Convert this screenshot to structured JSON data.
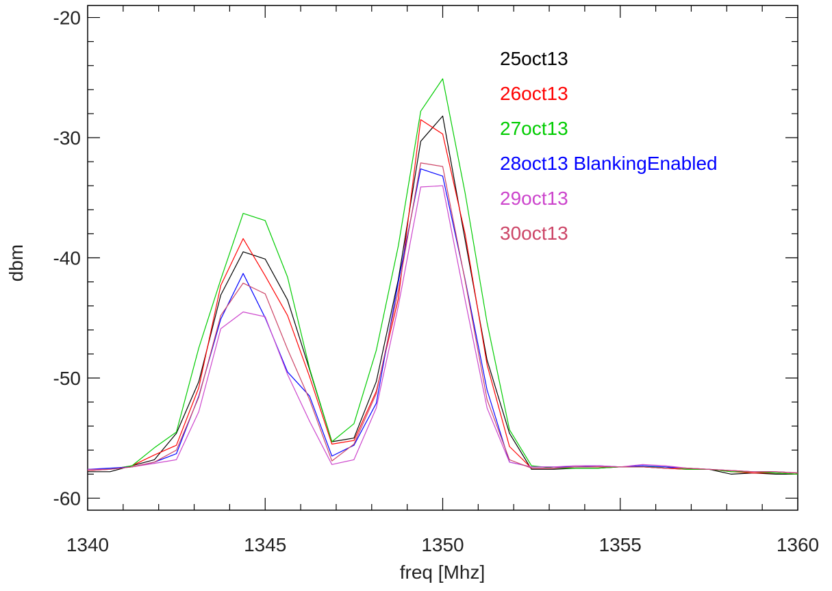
{
  "chart_data": {
    "type": "line",
    "xlabel": "freq [Mhz]",
    "ylabel": "dbm",
    "xlim": [
      1340,
      1360
    ],
    "ylim": [
      -61,
      -19
    ],
    "xticks": [
      1340,
      1345,
      1350,
      1355,
      1360
    ],
    "yticks": [
      -60,
      -50,
      -40,
      -30,
      -20
    ],
    "x_tick_labels": [
      "1340",
      "1345",
      "1350",
      "1355",
      "1360"
    ],
    "y_tick_labels": [
      "-60",
      "-50",
      "-40",
      "-30",
      "-20"
    ],
    "grid": false,
    "legend_position": "top-right",
    "x": [
      1340,
      1340.63,
      1341.25,
      1341.88,
      1342.5,
      1343.13,
      1343.75,
      1344.38,
      1345,
      1345.63,
      1346.25,
      1346.88,
      1347.5,
      1348.13,
      1348.75,
      1349.38,
      1350,
      1350.63,
      1351.25,
      1351.88,
      1352.5,
      1353.13,
      1353.75,
      1354.38,
      1355,
      1355.63,
      1356.25,
      1356.88,
      1357.5,
      1358.13,
      1358.75,
      1359.38,
      1360
    ],
    "series": [
      {
        "name": "25oct13",
        "color": "#000000",
        "values": [
          -57.8,
          -57.8,
          -57.3,
          -56.8,
          -54.6,
          -50.3,
          -43.1,
          -39.5,
          -40.1,
          -43.5,
          -49.3,
          -55.3,
          -55.0,
          -50.3,
          -41.8,
          -30.3,
          -28.2,
          -38.5,
          -48.5,
          -54.6,
          -57.6,
          -57.6,
          -57.5,
          -57.5,
          -57.4,
          -57.4,
          -57.5,
          -57.6,
          -57.6,
          -58.0,
          -57.9,
          -58.0,
          -58.0
        ]
      },
      {
        "name": "26oct13",
        "color": "#ff0000",
        "values": [
          -57.7,
          -57.6,
          -57.3,
          -56.4,
          -55.6,
          -50.8,
          -42.3,
          -38.4,
          -41.5,
          -44.8,
          -49.9,
          -55.5,
          -55.2,
          -51.1,
          -43.4,
          -28.5,
          -29.7,
          -38.0,
          -48.9,
          -55.7,
          -57.5,
          -57.5,
          -57.4,
          -57.4,
          -57.4,
          -57.4,
          -57.5,
          -57.6,
          -57.6,
          -57.8,
          -57.9,
          -57.9,
          -58.0
        ]
      },
      {
        "name": "27oct13",
        "color": "#00cc00",
        "values": [
          -57.6,
          -57.6,
          -57.3,
          -55.8,
          -54.5,
          -47.5,
          -41.8,
          -36.3,
          -36.9,
          -41.6,
          -49.2,
          -55.3,
          -53.8,
          -47.7,
          -39.0,
          -27.8,
          -25.1,
          -34.6,
          -45.4,
          -54.3,
          -57.3,
          -57.5,
          -57.5,
          -57.5,
          -57.4,
          -57.4,
          -57.4,
          -57.6,
          -57.6,
          -57.8,
          -57.8,
          -57.9,
          -58.0
        ]
      },
      {
        "name": "28oct13 BlankingEnabled",
        "color": "#0000ff",
        "values": [
          -57.6,
          -57.5,
          -57.4,
          -57.0,
          -56.3,
          -51.5,
          -45.1,
          -41.3,
          -45.0,
          -49.5,
          -51.5,
          -56.5,
          -55.6,
          -52.1,
          -42.0,
          -32.6,
          -33.2,
          -41.8,
          -51.0,
          -57.0,
          -57.4,
          -57.4,
          -57.4,
          -57.3,
          -57.4,
          -57.3,
          -57.4,
          -57.5,
          -57.6,
          -57.7,
          -57.8,
          -57.8,
          -57.9
        ]
      },
      {
        "name": "29oct13",
        "color": "#cc44cc",
        "values": [
          -57.6,
          -57.6,
          -57.4,
          -57.1,
          -56.8,
          -52.8,
          -45.9,
          -44.5,
          -44.9,
          -49.7,
          -53.6,
          -57.2,
          -56.8,
          -52.5,
          -44.0,
          -34.1,
          -34.0,
          -43.5,
          -52.5,
          -57.0,
          -57.4,
          -57.4,
          -57.3,
          -57.3,
          -57.4,
          -57.2,
          -57.3,
          -57.5,
          -57.6,
          -57.7,
          -57.8,
          -57.8,
          -57.9
        ]
      },
      {
        "name": "30oct13",
        "color": "#cc4466",
        "values": [
          -57.7,
          -57.6,
          -57.4,
          -57.0,
          -56.0,
          -51.6,
          -44.8,
          -42.1,
          -43.0,
          -47.6,
          -51.8,
          -56.9,
          -55.5,
          -51.3,
          -42.7,
          -32.1,
          -32.4,
          -41.9,
          -51.8,
          -56.8,
          -57.5,
          -57.5,
          -57.4,
          -57.4,
          -57.4,
          -57.4,
          -57.5,
          -57.5,
          -57.6,
          -57.7,
          -57.8,
          -57.8,
          -57.9
        ]
      }
    ]
  }
}
